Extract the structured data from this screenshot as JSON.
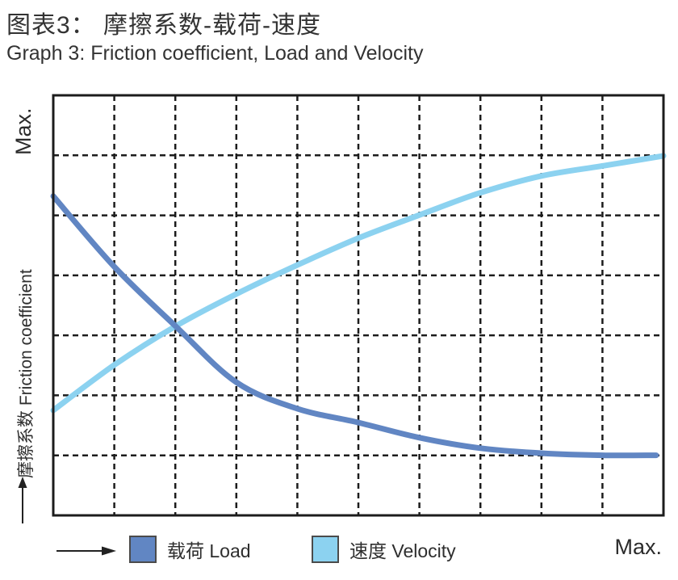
{
  "title": {
    "zh": "图表3： 摩擦系数-载荷-速度",
    "en": "Graph 3: Friction coefficient, Load and Velocity"
  },
  "axes": {
    "y_max_label": "Max.",
    "y_axis_label": "摩擦系数 Friction coefficient",
    "x_max_label": "Max."
  },
  "legend": {
    "items": [
      {
        "label": "载荷 Load",
        "color": "#6186c3"
      },
      {
        "label": "速度 Velocity",
        "color": "#8cd2f0"
      }
    ]
  },
  "colors": {
    "grid": "#1c1c1c",
    "border": "#1c1c1c",
    "load_line": "#6186c3",
    "velocity_line": "#8cd2f0"
  },
  "chart_data": {
    "type": "line",
    "title": "图表3： 摩擦系数-载荷-速度 / Graph 3: Friction coefficient, Load and Velocity",
    "xlabel": "",
    "ylabel": "摩擦系数 Friction coefficient",
    "x_axis_end_label": "Max.",
    "y_axis_end_label": "Max.",
    "x_range": [
      0,
      1
    ],
    "y_range": [
      0,
      1
    ],
    "grid": {
      "columns": 10,
      "rows": 7,
      "style": "dashed",
      "visible": true
    },
    "legend_position": "bottom",
    "series": [
      {
        "name": "载荷 Load",
        "color": "#6186c3",
        "points": [
          [
            0.0,
            0.76
          ],
          [
            0.1,
            0.592
          ],
          [
            0.2,
            0.451
          ],
          [
            0.3,
            0.317
          ],
          [
            0.4,
            0.254
          ],
          [
            0.5,
            0.221
          ],
          [
            0.6,
            0.185
          ],
          [
            0.7,
            0.16
          ],
          [
            0.8,
            0.148
          ],
          [
            0.9,
            0.143
          ],
          [
            0.988,
            0.143
          ]
        ]
      },
      {
        "name": "速度 Velocity",
        "color": "#8cd2f0",
        "points": [
          [
            0.0,
            0.25
          ],
          [
            0.1,
            0.358
          ],
          [
            0.2,
            0.45
          ],
          [
            0.3,
            0.527
          ],
          [
            0.4,
            0.596
          ],
          [
            0.5,
            0.66
          ],
          [
            0.6,
            0.715
          ],
          [
            0.7,
            0.768
          ],
          [
            0.8,
            0.808
          ],
          [
            0.905,
            0.833
          ],
          [
            1.0,
            0.856
          ]
        ]
      }
    ]
  }
}
